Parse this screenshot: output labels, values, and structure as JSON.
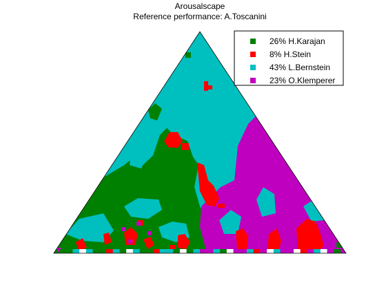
{
  "chart_data": {
    "type": "heatmap",
    "subtype": "ternary-region-map",
    "title": "Arousalscape",
    "subtitle": "Reference performance: A.Toscanini",
    "legend_position": "top-right",
    "grid": false,
    "series": [
      {
        "name": "26% H.Karajan",
        "share_pct": 26,
        "color": "#008000"
      },
      {
        "name": " 8% H.Stein",
        "share_pct": 8,
        "color": "#ff0000"
      },
      {
        "name": "43% L.Bernstein",
        "share_pct": 43,
        "color": "#00bfbf"
      },
      {
        "name": "23% O.Klemperer",
        "share_pct": 23,
        "color": "#bf00bf"
      }
    ]
  }
}
